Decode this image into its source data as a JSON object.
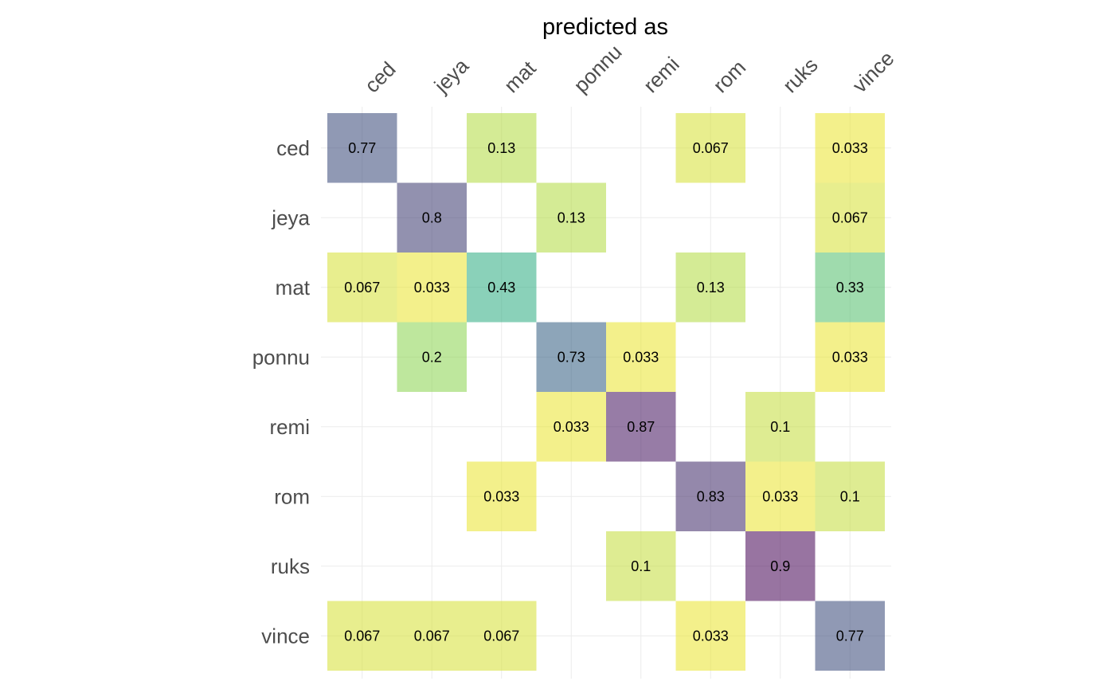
{
  "chart_data": {
    "type": "heatmap",
    "title": "predicted as",
    "columns": [
      "ced",
      "jeya",
      "mat",
      "ponnu",
      "remi",
      "rom",
      "ruks",
      "vince"
    ],
    "rows": [
      "ced",
      "jeya",
      "mat",
      "ponnu",
      "remi",
      "rom",
      "ruks",
      "vince"
    ],
    "cells": [
      {
        "row": "ced",
        "col": "ced",
        "value": 0.77,
        "label": "0.77"
      },
      {
        "row": "ced",
        "col": "mat",
        "value": 0.13,
        "label": "0.13"
      },
      {
        "row": "ced",
        "col": "rom",
        "value": 0.067,
        "label": "0.067"
      },
      {
        "row": "ced",
        "col": "vince",
        "value": 0.033,
        "label": "0.033"
      },
      {
        "row": "jeya",
        "col": "jeya",
        "value": 0.8,
        "label": "0.8"
      },
      {
        "row": "jeya",
        "col": "ponnu",
        "value": 0.13,
        "label": "0.13"
      },
      {
        "row": "jeya",
        "col": "vince",
        "value": 0.067,
        "label": "0.067"
      },
      {
        "row": "mat",
        "col": "ced",
        "value": 0.067,
        "label": "0.067"
      },
      {
        "row": "mat",
        "col": "jeya",
        "value": 0.033,
        "label": "0.033"
      },
      {
        "row": "mat",
        "col": "mat",
        "value": 0.43,
        "label": "0.43"
      },
      {
        "row": "mat",
        "col": "rom",
        "value": 0.13,
        "label": "0.13"
      },
      {
        "row": "mat",
        "col": "vince",
        "value": 0.33,
        "label": "0.33"
      },
      {
        "row": "ponnu",
        "col": "jeya",
        "value": 0.2,
        "label": "0.2"
      },
      {
        "row": "ponnu",
        "col": "ponnu",
        "value": 0.73,
        "label": "0.73"
      },
      {
        "row": "ponnu",
        "col": "remi",
        "value": 0.033,
        "label": "0.033"
      },
      {
        "row": "ponnu",
        "col": "vince",
        "value": 0.033,
        "label": "0.033"
      },
      {
        "row": "remi",
        "col": "ponnu",
        "value": 0.033,
        "label": "0.033"
      },
      {
        "row": "remi",
        "col": "remi",
        "value": 0.87,
        "label": "0.87"
      },
      {
        "row": "remi",
        "col": "ruks",
        "value": 0.1,
        "label": "0.1"
      },
      {
        "row": "rom",
        "col": "mat",
        "value": 0.033,
        "label": "0.033"
      },
      {
        "row": "rom",
        "col": "rom",
        "value": 0.83,
        "label": "0.83"
      },
      {
        "row": "rom",
        "col": "ruks",
        "value": 0.033,
        "label": "0.033"
      },
      {
        "row": "rom",
        "col": "vince",
        "value": 0.1,
        "label": "0.1"
      },
      {
        "row": "ruks",
        "col": "remi",
        "value": 0.1,
        "label": "0.1"
      },
      {
        "row": "ruks",
        "col": "ruks",
        "value": 0.9,
        "label": "0.9"
      },
      {
        "row": "vince",
        "col": "ced",
        "value": 0.067,
        "label": "0.067"
      },
      {
        "row": "vince",
        "col": "jeya",
        "value": 0.067,
        "label": "0.067"
      },
      {
        "row": "vince",
        "col": "mat",
        "value": 0.067,
        "label": "0.067"
      },
      {
        "row": "vince",
        "col": "rom",
        "value": 0.033,
        "label": "0.033"
      },
      {
        "row": "vince",
        "col": "vince",
        "value": 0.77,
        "label": "0.77"
      }
    ],
    "color_scale": "viridis (reversed, semi-transparent): low = yellow, high = purple",
    "grid": true,
    "legend": "none"
  }
}
